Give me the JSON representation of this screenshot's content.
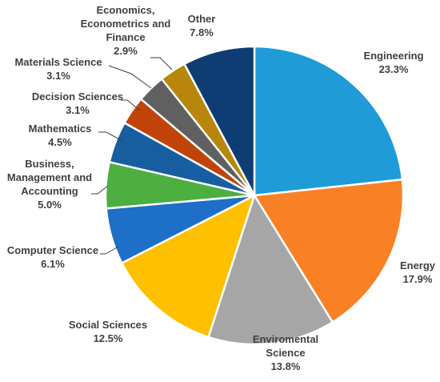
{
  "chart_data": {
    "type": "pie",
    "start_angle_deg": 0,
    "direction": "clockwise",
    "slices": [
      {
        "label": "Engineering",
        "pct_text": "23.3%",
        "value": 23.3,
        "color": "#1f9bd7"
      },
      {
        "label": "Energy",
        "pct_text": "17.9%",
        "value": 17.9,
        "color": "#f98125"
      },
      {
        "label": "Enviromental Science",
        "label_lines": [
          "Enviromental",
          "Science"
        ],
        "pct_text": "13.8%",
        "value": 13.8,
        "color": "#a6a6a6"
      },
      {
        "label": "Social Sciences",
        "pct_text": "12.5%",
        "value": 12.5,
        "color": "#ffc000"
      },
      {
        "label": "Computer Science",
        "pct_text": "6.1%",
        "value": 6.1,
        "color": "#1e6fc7"
      },
      {
        "label": "Business, Management and Accounting",
        "label_lines": [
          "Business,",
          "Management and",
          "Accounting"
        ],
        "pct_text": "5.0%",
        "value": 5.0,
        "color": "#4caf40"
      },
      {
        "label": "Mathematics",
        "pct_text": "4.5%",
        "value": 4.5,
        "color": "#175ea0"
      },
      {
        "label": "Decision Sciences",
        "pct_text": "3.1%",
        "value": 3.1,
        "color": "#c0440a"
      },
      {
        "label": "Materials Science",
        "pct_text": "3.1%",
        "value": 3.1,
        "color": "#606060"
      },
      {
        "label": "Economics, Econometrics and Finance",
        "label_lines": [
          "Economics,",
          "Econometrics and",
          "Finance"
        ],
        "pct_text": "2.9%",
        "value": 2.9,
        "color": "#b8860b"
      },
      {
        "label": "Other",
        "pct_text": "7.8%",
        "value": 7.8,
        "color": "#0d3d73"
      }
    ]
  }
}
